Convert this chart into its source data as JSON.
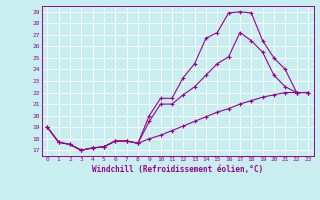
{
  "xlabel": "Windchill (Refroidissement éolien,°C)",
  "background_color": "#c8eef0",
  "line_color": "#990099",
  "ylim": [
    16.5,
    29.5
  ],
  "xlim": [
    -0.5,
    23.5
  ],
  "yticks": [
    17,
    18,
    19,
    20,
    21,
    22,
    23,
    24,
    25,
    26,
    27,
    28,
    29
  ],
  "xticks": [
    0,
    1,
    2,
    3,
    4,
    5,
    6,
    7,
    8,
    9,
    10,
    11,
    12,
    13,
    14,
    15,
    16,
    17,
    18,
    19,
    20,
    21,
    22,
    23
  ],
  "series1_x": [
    0,
    1,
    2,
    3,
    4,
    5,
    6,
    7,
    8,
    9,
    10,
    11,
    12,
    13,
    14,
    15,
    16,
    17,
    18,
    19,
    20,
    21,
    22,
    23
  ],
  "series1_y": [
    19.0,
    17.7,
    17.5,
    17.0,
    17.2,
    17.3,
    17.8,
    17.8,
    17.6,
    20.0,
    21.5,
    21.5,
    23.3,
    24.5,
    26.7,
    27.2,
    28.9,
    29.0,
    28.9,
    26.5,
    25.0,
    24.0,
    22.0,
    22.0
  ],
  "series2_x": [
    0,
    1,
    2,
    3,
    4,
    5,
    6,
    7,
    8,
    9,
    10,
    11,
    12,
    13,
    14,
    15,
    16,
    17,
    18,
    19,
    20,
    21,
    22,
    23
  ],
  "series2_y": [
    19.0,
    17.7,
    17.5,
    17.0,
    17.2,
    17.3,
    17.8,
    17.8,
    17.6,
    19.5,
    21.0,
    21.0,
    21.8,
    22.5,
    23.5,
    24.5,
    25.1,
    27.2,
    26.5,
    25.5,
    23.5,
    22.5,
    22.0,
    22.0
  ],
  "series3_x": [
    0,
    1,
    2,
    3,
    4,
    5,
    6,
    7,
    8,
    9,
    10,
    11,
    12,
    13,
    14,
    15,
    16,
    17,
    18,
    19,
    20,
    21,
    22,
    23
  ],
  "series3_y": [
    19.0,
    17.7,
    17.5,
    17.0,
    17.2,
    17.3,
    17.8,
    17.8,
    17.6,
    18.0,
    18.3,
    18.7,
    19.1,
    19.5,
    19.9,
    20.3,
    20.6,
    21.0,
    21.3,
    21.6,
    21.8,
    22.0,
    22.0,
    22.0
  ]
}
